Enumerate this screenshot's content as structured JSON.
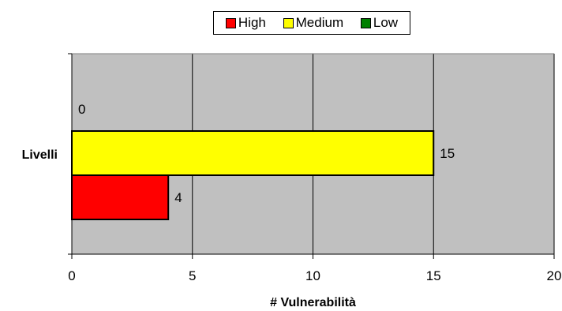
{
  "chart_data": {
    "type": "bar",
    "orientation": "horizontal",
    "categories": [
      "Livelli"
    ],
    "series": [
      {
        "name": "High",
        "values": [
          4
        ],
        "color": "#ff0000"
      },
      {
        "name": "Medium",
        "values": [
          15
        ],
        "color": "#ffff00"
      },
      {
        "name": "Low",
        "values": [
          0
        ],
        "color": "#008000"
      }
    ],
    "xlabel": "# Vulnerabilità",
    "ylabel": "",
    "xlim": [
      0,
      20
    ],
    "xticks": [
      0,
      5,
      10,
      15,
      20
    ],
    "grid": true,
    "plot_background": "#c0c0c0",
    "legend_position": "top"
  }
}
